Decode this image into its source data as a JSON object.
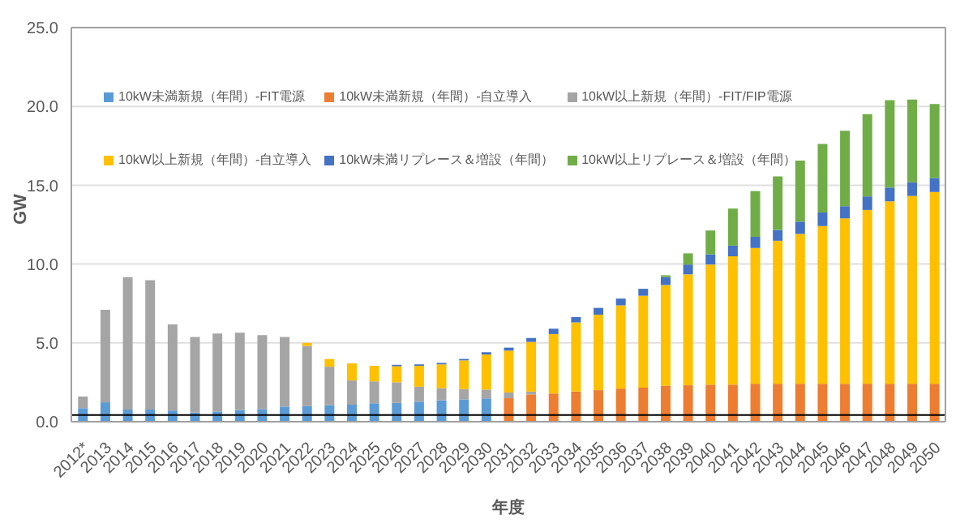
{
  "chart_data": {
    "type": "bar",
    "stacked": true,
    "xlabel": "年度",
    "ylabel": "GW",
    "categories": [
      "2012*",
      "2013",
      "2014",
      "2015",
      "2016",
      "2017",
      "2018",
      "2019",
      "2020",
      "2021",
      "2022",
      "2023",
      "2024",
      "2025",
      "2026",
      "2027",
      "2028",
      "2029",
      "2030",
      "2031",
      "2032",
      "2033",
      "2034",
      "2035",
      "2036",
      "2037",
      "2038",
      "2039",
      "2040",
      "2041",
      "2042",
      "2043",
      "2044",
      "2045",
      "2046",
      "2047",
      "2048",
      "2049",
      "2050"
    ],
    "series": [
      {
        "name": "10kW未満新規（年間）-FIT電源",
        "color": "#5b9bd5",
        "values": [
          0.86,
          1.23,
          0.77,
          0.77,
          0.71,
          0.59,
          0.65,
          0.74,
          0.8,
          0.96,
          0.99,
          1.05,
          1.08,
          1.17,
          1.2,
          1.27,
          1.36,
          1.42,
          1.48,
          null,
          null,
          null,
          null,
          null,
          null,
          null,
          null,
          null,
          null,
          null,
          null,
          null,
          null,
          null,
          null,
          null,
          null,
          null,
          null
        ]
      },
      {
        "name": "10kW未満新規（年間）-自立導入",
        "color": "#ed7d31",
        "values": [
          null,
          null,
          null,
          null,
          null,
          null,
          null,
          null,
          null,
          null,
          null,
          null,
          null,
          null,
          null,
          null,
          null,
          null,
          null,
          1.49,
          1.73,
          1.79,
          1.91,
          2.0,
          2.1,
          2.16,
          2.28,
          2.31,
          2.35,
          2.35,
          2.41,
          2.41,
          2.41,
          2.41,
          2.41,
          2.41,
          2.41,
          2.41,
          2.41
        ]
      },
      {
        "name": "10kW以上新規（年間）-FIT/FIP電源",
        "color": "#a5a5a5",
        "values": [
          0.74,
          5.87,
          8.4,
          8.21,
          5.46,
          4.78,
          4.94,
          4.91,
          4.69,
          4.41,
          3.82,
          2.44,
          1.54,
          1.39,
          1.3,
          0.95,
          0.77,
          0.65,
          0.56,
          0.36,
          0.18,
          null,
          null,
          null,
          null,
          null,
          null,
          null,
          null,
          null,
          null,
          null,
          null,
          null,
          null,
          null,
          null,
          null,
          null
        ]
      },
      {
        "name": "10kW以上新規（年間）-自立導入",
        "color": "#ffc000",
        "values": [
          null,
          null,
          null,
          null,
          null,
          null,
          null,
          null,
          null,
          null,
          0.19,
          0.49,
          1.08,
          0.99,
          1.02,
          1.33,
          1.51,
          1.82,
          2.22,
          2.66,
          3.15,
          3.77,
          4.39,
          4.79,
          5.28,
          5.83,
          6.39,
          7.04,
          7.62,
          8.14,
          8.61,
          9.07,
          9.5,
          10.0,
          10.49,
          11.02,
          11.57,
          11.91,
          12.16
        ]
      },
      {
        "name": "10kW未満リプレース＆増設（年間）",
        "color": "#4472c4",
        "values": [
          null,
          null,
          null,
          null,
          null,
          null,
          null,
          null,
          null,
          null,
          null,
          null,
          null,
          null,
          0.09,
          0.09,
          0.09,
          0.09,
          0.15,
          0.19,
          0.25,
          0.34,
          0.34,
          0.43,
          0.43,
          0.44,
          0.5,
          0.62,
          0.65,
          0.68,
          0.71,
          0.68,
          0.78,
          0.86,
          0.77,
          0.86,
          0.87,
          0.87,
          0.89
        ]
      },
      {
        "name": "10kW以上リプレース＆増設（年間）",
        "color": "#70ad47",
        "values": [
          null,
          null,
          null,
          null,
          null,
          null,
          null,
          null,
          null,
          null,
          null,
          null,
          null,
          null,
          null,
          null,
          null,
          null,
          null,
          null,
          null,
          null,
          null,
          null,
          null,
          null,
          0.12,
          0.71,
          1.51,
          2.35,
          2.9,
          3.4,
          3.88,
          4.35,
          4.79,
          5.22,
          5.55,
          5.24,
          4.69
        ]
      }
    ],
    "ylim": [
      0,
      25
    ],
    "yticks": [
      {
        "value": 0,
        "label": "0.0"
      },
      {
        "value": 5,
        "label": "5.0"
      },
      {
        "value": 10,
        "label": "10.0"
      },
      {
        "value": 15,
        "label": "15.0"
      },
      {
        "value": 20,
        "label": "20.0"
      },
      {
        "value": 25,
        "label": "25.0"
      }
    ],
    "ref_lines": [
      {
        "axis": "y",
        "value": 0.43,
        "color": "#000000"
      }
    ],
    "grid": "y",
    "legend": "top"
  }
}
